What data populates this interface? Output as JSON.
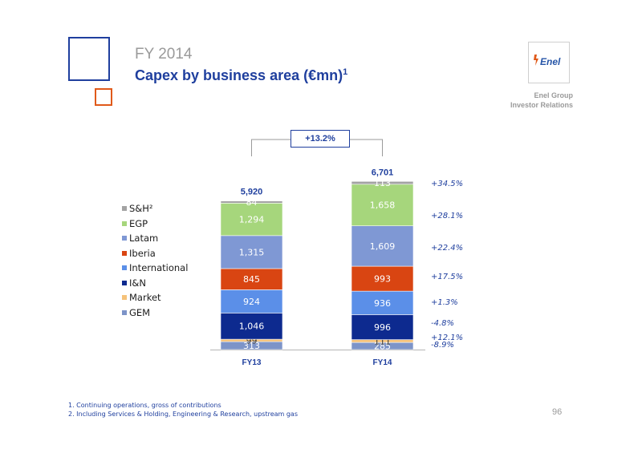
{
  "header": {
    "supertitle": "FY 2014",
    "title": "Capex by business area (€mn)",
    "title_sup": "1"
  },
  "logo": {
    "text": "Enel",
    "icon": "enel-logo-icon"
  },
  "company": {
    "line1": "Enel Group",
    "line2": "Investor Relations"
  },
  "growth_badge": "+13.2%",
  "footnotes": [
    "1. Continuing operations, gross of contributions",
    "2. Including Services & Holding, Engineering & Research, upstream gas"
  ],
  "page_number": "96",
  "colors": {
    "brand_blue": "#1f3f9e",
    "accent_orange": "#e05a1a"
  },
  "chart_data": {
    "type": "bar",
    "stacked": true,
    "categories": [
      "FY13",
      "FY14"
    ],
    "totals": [
      "5,920",
      "6,701"
    ],
    "series": [
      {
        "name": "GEM",
        "values": [
          313,
          285
        ],
        "labels": [
          "313",
          "285"
        ],
        "color": "#7d94c8",
        "change": "-8.9%"
      },
      {
        "name": "Market",
        "values": [
          99,
          111
        ],
        "labels": [
          "99",
          "111"
        ],
        "color": "#f5c27a",
        "change": "+12.1%"
      },
      {
        "name": "I&N",
        "values": [
          1046,
          996
        ],
        "labels": [
          "1,046",
          "996"
        ],
        "color": "#0d2a8f",
        "change": "-4.8%"
      },
      {
        "name": "International",
        "values": [
          924,
          936
        ],
        "labels": [
          "924",
          "936"
        ],
        "color": "#5b8fe8",
        "change": "+1.3%"
      },
      {
        "name": "Iberia",
        "values": [
          845,
          993
        ],
        "labels": [
          "845",
          "993"
        ],
        "color": "#d94512",
        "change": "+17.5%"
      },
      {
        "name": "Latam",
        "values": [
          1315,
          1609
        ],
        "labels": [
          "1,315",
          "1,609"
        ],
        "color": "#7f98d4",
        "change": "+22.4%"
      },
      {
        "name": "EGP",
        "values": [
          1294,
          1658
        ],
        "labels": [
          "1,294",
          "1,658"
        ],
        "color": "#a6d67c",
        "change": "+28.1%"
      },
      {
        "name": "S&H²",
        "values": [
          84,
          113
        ],
        "labels": [
          "84",
          "113"
        ],
        "color": "#a3a3a3",
        "change": "+34.5%"
      }
    ],
    "legend_position": "left",
    "grid": false
  }
}
